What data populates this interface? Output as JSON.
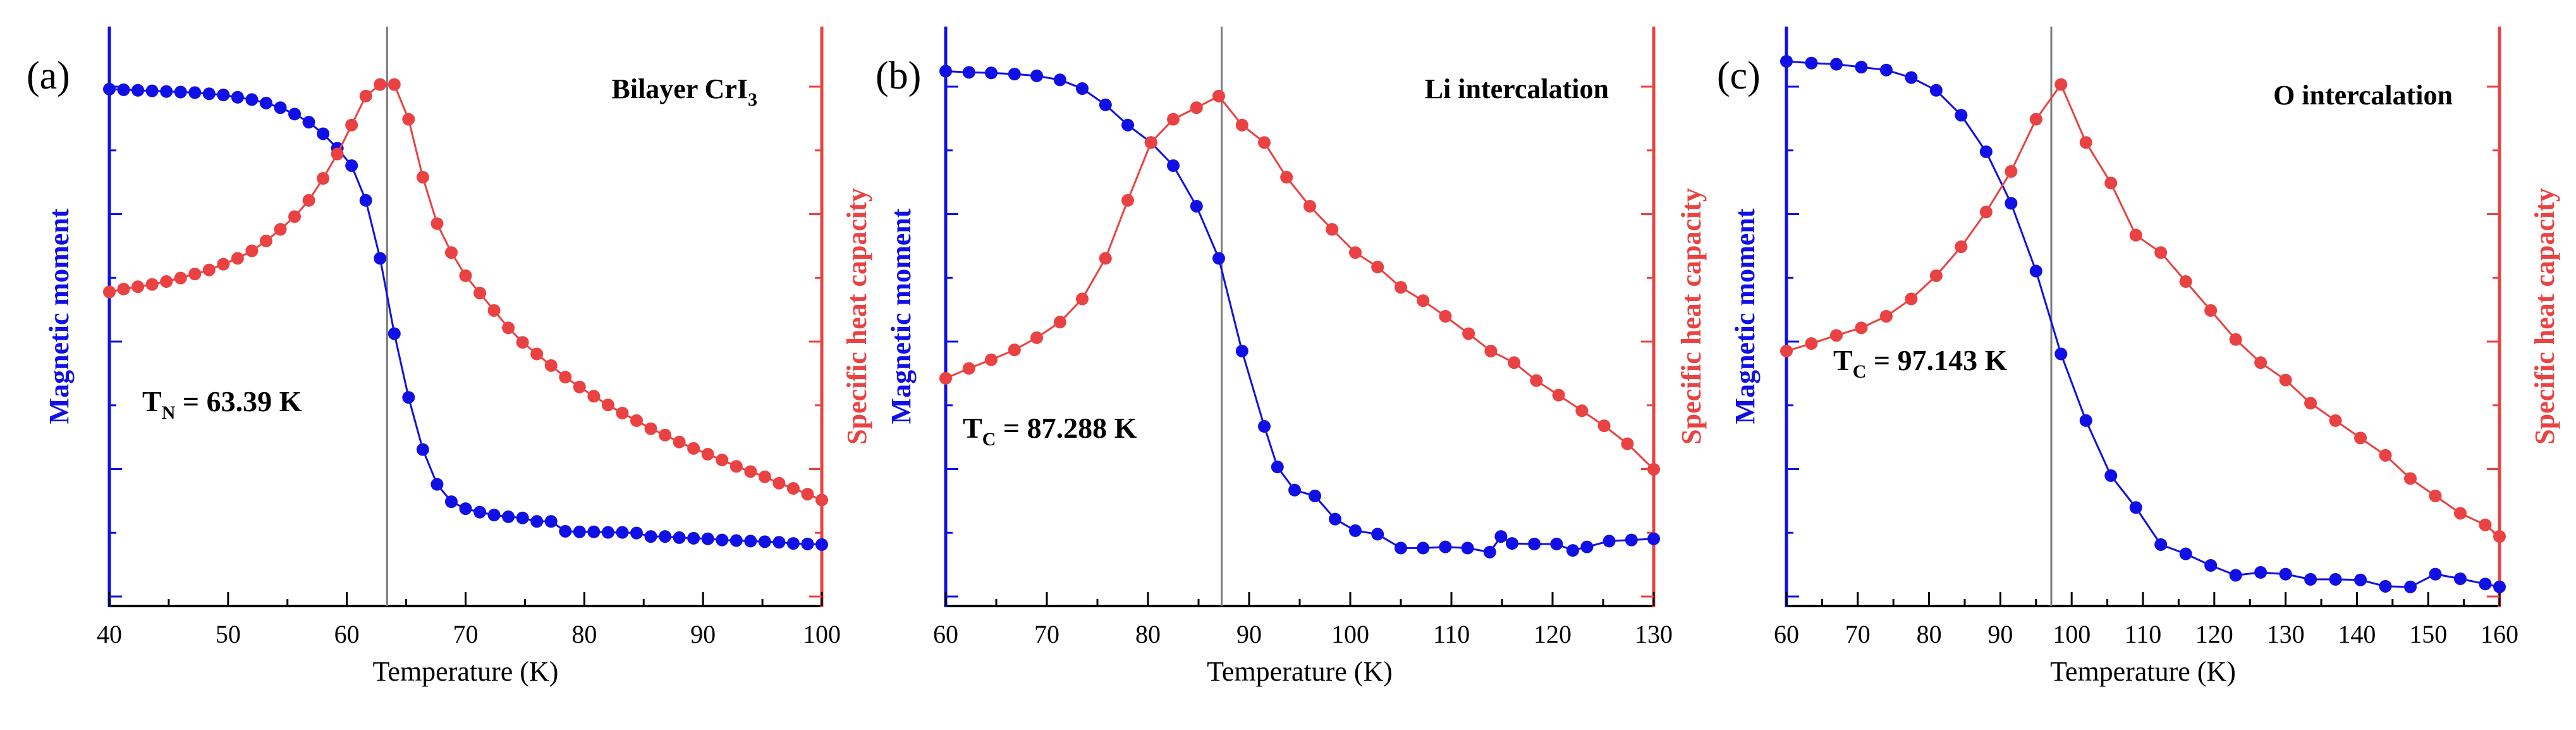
{
  "colors": {
    "magnetic": "#1010e6",
    "heat": "#ea4242",
    "marker": "#7a7a7a",
    "axis": "#000000"
  },
  "chart_data": [
    {
      "type": "line",
      "panel_label": "(a)",
      "title_main": "Bilayer CrI",
      "title_sub": "3",
      "xlabel": "Temperature (K)",
      "ylabel_left": "Magnetic moment",
      "ylabel_right": "Specific heat capacity",
      "xlim": [
        40,
        100
      ],
      "xticks": [
        40,
        50,
        60,
        70,
        80,
        90,
        100
      ],
      "ylim": [
        0,
        1
      ],
      "transition_main": "T",
      "transition_sub": "N",
      "transition_value": " = 63.39 K",
      "transition_x": 63.39,
      "series": [
        {
          "name": "Magnetic moment",
          "axis": "left",
          "x": [
            40,
            41.2,
            42.4,
            43.6,
            44.8,
            46,
            47.2,
            48.4,
            49.6,
            50.8,
            52,
            53.2,
            54.4,
            55.6,
            56.8,
            58,
            59.2,
            60.4,
            61.6,
            62.8,
            64,
            65.2,
            66.4,
            67.6,
            68.8,
            70,
            71.2,
            72.4,
            73.6,
            74.8,
            76,
            77.2,
            78.4,
            79.6,
            80.8,
            82,
            83.2,
            84.4,
            85.6,
            86.8,
            88,
            89.2,
            90.4,
            91.6,
            92.8,
            94,
            95.2,
            96.4,
            97.6,
            98.8,
            100
          ],
          "y": [
            0.892,
            0.891,
            0.89,
            0.889,
            0.888,
            0.887,
            0.886,
            0.884,
            0.882,
            0.878,
            0.874,
            0.868,
            0.86,
            0.849,
            0.835,
            0.815,
            0.79,
            0.76,
            0.7,
            0.6,
            0.47,
            0.36,
            0.27,
            0.21,
            0.18,
            0.168,
            0.162,
            0.157,
            0.154,
            0.152,
            0.146,
            0.146,
            0.129,
            0.128,
            0.128,
            0.127,
            0.127,
            0.126,
            0.12,
            0.12,
            0.118,
            0.117,
            0.116,
            0.114,
            0.113,
            0.112,
            0.111,
            0.11,
            0.108,
            0.107,
            0.106
          ]
        },
        {
          "name": "Specific heat capacity",
          "axis": "right",
          "x": [
            40,
            41.2,
            42.4,
            43.6,
            44.8,
            46,
            47.2,
            48.4,
            49.6,
            50.8,
            52,
            53.2,
            54.4,
            55.6,
            56.8,
            58,
            59.2,
            60.4,
            61.6,
            62.8,
            64,
            65.2,
            66.4,
            67.6,
            68.8,
            70,
            71.2,
            72.4,
            73.6,
            74.8,
            76,
            77.2,
            78.4,
            79.6,
            80.8,
            82,
            83.2,
            84.4,
            85.6,
            86.8,
            88,
            89.2,
            90.4,
            91.6,
            92.8,
            94,
            95.2,
            96.4,
            97.6,
            98.8,
            100
          ],
          "y": [
            0.542,
            0.547,
            0.551,
            0.555,
            0.56,
            0.566,
            0.573,
            0.58,
            0.59,
            0.6,
            0.613,
            0.63,
            0.65,
            0.672,
            0.7,
            0.738,
            0.78,
            0.83,
            0.88,
            0.9,
            0.9,
            0.84,
            0.74,
            0.66,
            0.61,
            0.57,
            0.54,
            0.51,
            0.48,
            0.455,
            0.435,
            0.415,
            0.395,
            0.378,
            0.362,
            0.347,
            0.333,
            0.32,
            0.306,
            0.295,
            0.283,
            0.272,
            0.262,
            0.252,
            0.241,
            0.232,
            0.223,
            0.212,
            0.203,
            0.193,
            0.183
          ]
        }
      ]
    },
    {
      "type": "line",
      "panel_label": "(b)",
      "title_main": "Li intercalation",
      "title_sub": "",
      "xlabel": "Temperature (K)",
      "ylabel_left": "Magnetic moment",
      "ylabel_right": "Specific heat capacity",
      "xlim": [
        60,
        130
      ],
      "xticks": [
        60,
        70,
        80,
        90,
        100,
        110,
        120,
        130
      ],
      "ylim": [
        0,
        1
      ],
      "transition_main": "T",
      "transition_sub": "C",
      "transition_value": " = 87.288 K",
      "transition_x": 87.288,
      "series": [
        {
          "name": "Magnetic moment",
          "axis": "left",
          "x": [
            60,
            62.3,
            64.5,
            66.8,
            69,
            71.3,
            73.5,
            75.8,
            78,
            80.3,
            82.5,
            84.8,
            87,
            89.3,
            91.5,
            92.8,
            94.5,
            96.5,
            98.5,
            100.5,
            102.7,
            105,
            107.2,
            109.4,
            111.6,
            113.8,
            114.9,
            116,
            118.2,
            120.4,
            122,
            123.4,
            125.6,
            127.8,
            130
          ],
          "y": [
            0.923,
            0.921,
            0.92,
            0.918,
            0.915,
            0.908,
            0.893,
            0.865,
            0.83,
            0.8,
            0.76,
            0.69,
            0.6,
            0.44,
            0.31,
            0.24,
            0.2,
            0.19,
            0.15,
            0.13,
            0.124,
            0.1,
            0.1,
            0.102,
            0.1,
            0.093,
            0.12,
            0.108,
            0.107,
            0.107,
            0.096,
            0.102,
            0.112,
            0.114,
            0.116
          ]
        },
        {
          "name": "Specific heat capacity",
          "axis": "right",
          "x": [
            60,
            62.3,
            64.5,
            66.8,
            69,
            71.3,
            73.5,
            75.8,
            78,
            80.3,
            82.5,
            84.8,
            87,
            89.3,
            91.5,
            93.7,
            96,
            98.2,
            100.5,
            102.7,
            105,
            107.2,
            109.4,
            111.7,
            113.9,
            116.2,
            118.4,
            120.6,
            122.9,
            125.1,
            127.4,
            130
          ],
          "y": [
            0.393,
            0.41,
            0.425,
            0.442,
            0.463,
            0.49,
            0.53,
            0.6,
            0.7,
            0.8,
            0.84,
            0.86,
            0.88,
            0.83,
            0.8,
            0.74,
            0.69,
            0.65,
            0.61,
            0.585,
            0.55,
            0.527,
            0.5,
            0.47,
            0.44,
            0.42,
            0.389,
            0.364,
            0.337,
            0.311,
            0.28,
            0.236
          ]
        }
      ]
    },
    {
      "type": "line",
      "panel_label": "(c)",
      "title_main": "O intercalation",
      "title_sub": "",
      "xlabel": "Temperature (K)",
      "ylabel_left": "Magnetic moment",
      "ylabel_right": "Specific heat capacity",
      "xlim": [
        60,
        160
      ],
      "xticks": [
        60,
        70,
        80,
        90,
        100,
        110,
        120,
        130,
        140,
        150,
        160
      ],
      "ylim": [
        0,
        1
      ],
      "transition_main": "T",
      "transition_sub": "C",
      "transition_value": " = 97.143 K",
      "transition_x": 97.143,
      "series": [
        {
          "name": "Magnetic moment",
          "axis": "left",
          "x": [
            60,
            63.5,
            67,
            70.5,
            74,
            77.5,
            81,
            84.5,
            88,
            91.5,
            95,
            98.5,
            102,
            105.5,
            109,
            112.5,
            116,
            119.5,
            123,
            126.5,
            130,
            133.5,
            137,
            140.5,
            144,
            147.5,
            151,
            154.5,
            158,
            160
          ],
          "y": [
            0.94,
            0.937,
            0.935,
            0.93,
            0.925,
            0.912,
            0.89,
            0.847,
            0.784,
            0.695,
            0.578,
            0.435,
            0.32,
            0.225,
            0.17,
            0.106,
            0.09,
            0.07,
            0.053,
            0.058,
            0.055,
            0.046,
            0.046,
            0.045,
            0.034,
            0.033,
            0.055,
            0.047,
            0.038,
            0.033
          ]
        },
        {
          "name": "Specific heat capacity",
          "axis": "right",
          "x": [
            60,
            63.5,
            67,
            70.5,
            74,
            77.5,
            81,
            84.5,
            88,
            91.5,
            95,
            98.5,
            102,
            105.5,
            109,
            112.5,
            116,
            119.5,
            123,
            126.5,
            130,
            133.5,
            137,
            140.5,
            144,
            147.5,
            151,
            154.5,
            158,
            160
          ],
          "y": [
            0.44,
            0.453,
            0.467,
            0.48,
            0.5,
            0.53,
            0.57,
            0.62,
            0.68,
            0.75,
            0.84,
            0.9,
            0.8,
            0.73,
            0.64,
            0.61,
            0.56,
            0.51,
            0.46,
            0.42,
            0.39,
            0.35,
            0.32,
            0.29,
            0.26,
            0.22,
            0.19,
            0.16,
            0.14,
            0.12
          ]
        }
      ]
    }
  ]
}
